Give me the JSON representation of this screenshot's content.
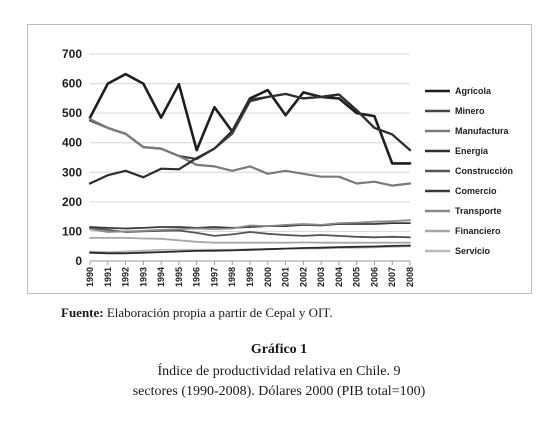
{
  "chart_data": {
    "type": "line",
    "x": [
      "1990",
      "1991",
      "1992",
      "1993",
      "1994",
      "1995",
      "1996",
      "1997",
      "1998",
      "1999",
      "2000",
      "2001",
      "2002",
      "2003",
      "2004",
      "2005",
      "2006",
      "2007",
      "2008"
    ],
    "ylim": [
      0,
      700
    ],
    "yticks": [
      "0",
      "100",
      "200",
      "300",
      "400",
      "500",
      "600",
      "700"
    ],
    "grid": true,
    "legend_position": "right",
    "series": [
      {
        "name": "Agrícola",
        "color": "#1f1f1f",
        "width": 2.6,
        "values": [
          485,
          600,
          632,
          600,
          485,
          598,
          375,
          520,
          438,
          550,
          578,
          493,
          570,
          555,
          550,
          500,
          490,
          330,
          330
        ]
      },
      {
        "name": "Minero",
        "color": "#454545",
        "width": 2.2,
        "values": [
          475,
          450,
          430,
          385,
          380,
          355,
          345,
          380,
          430,
          540,
          555,
          565,
          550,
          555,
          563,
          510,
          450,
          428,
          375
        ]
      },
      {
        "name": "Manufactura",
        "color": "#7a7a7a",
        "width": 2.2,
        "values": [
          480,
          450,
          430,
          385,
          380,
          355,
          325,
          320,
          305,
          320,
          295,
          305,
          295,
          285,
          285,
          262,
          268,
          255,
          262
        ]
      },
      {
        "name": "Energía",
        "color": "#2e2e2e",
        "width": 2.2,
        "values": [
          262,
          290,
          305,
          283,
          312,
          310,
          348,
          380,
          440,
          545,
          555,
          565,
          550,
          555,
          563,
          510,
          450,
          428,
          375
        ]
      },
      {
        "name": "Construcción",
        "color": "#555555",
        "width": 1.8,
        "values": [
          112,
          105,
          98,
          100,
          102,
          103,
          95,
          85,
          90,
          98,
          92,
          88,
          85,
          88,
          85,
          82,
          80,
          82,
          80
        ]
      },
      {
        "name": "Comercio",
        "color": "#3a3a3a",
        "width": 1.8,
        "values": [
          115,
          112,
          110,
          112,
          115,
          115,
          112,
          115,
          112,
          115,
          118,
          118,
          122,
          120,
          125,
          125,
          125,
          128,
          128
        ]
      },
      {
        "name": "Transporte",
        "color": "#8a8a8a",
        "width": 1.8,
        "values": [
          108,
          98,
          100,
          102,
          105,
          108,
          110,
          108,
          110,
          120,
          118,
          122,
          125,
          122,
          128,
          130,
          133,
          135,
          138
        ]
      },
      {
        "name": "Financiero",
        "color": "#a8a8a8",
        "width": 1.8,
        "values": [
          78,
          78,
          78,
          76,
          75,
          70,
          65,
          62,
          62,
          62,
          62,
          62,
          63,
          62,
          62,
          62,
          62,
          62,
          62
        ]
      },
      {
        "name": "Servicio",
        "color": "#b8b8b8",
        "width": 1.8,
        "values": [
          32,
          30,
          32,
          35,
          38,
          38,
          38,
          38,
          38,
          40,
          40,
          42,
          42,
          43,
          44,
          45,
          46,
          48,
          50
        ]
      },
      {
        "name": "",
        "color": "#2a2a2a",
        "width": 1.8,
        "values": [
          28,
          26,
          26,
          28,
          30,
          32,
          34,
          35,
          36,
          38,
          40,
          42,
          44,
          45,
          47,
          48,
          49,
          51,
          52
        ]
      }
    ]
  },
  "source": {
    "label": "Fuente:",
    "text": "Elaboración propia a partir de Cepal y OIT."
  },
  "figure": {
    "title": "Gráfico 1",
    "caption_line1": "Índice de productividad relativa en Chile. 9",
    "caption_line2": "sectores (1990-2008). Dólares 2000 (PIB total=100)"
  }
}
